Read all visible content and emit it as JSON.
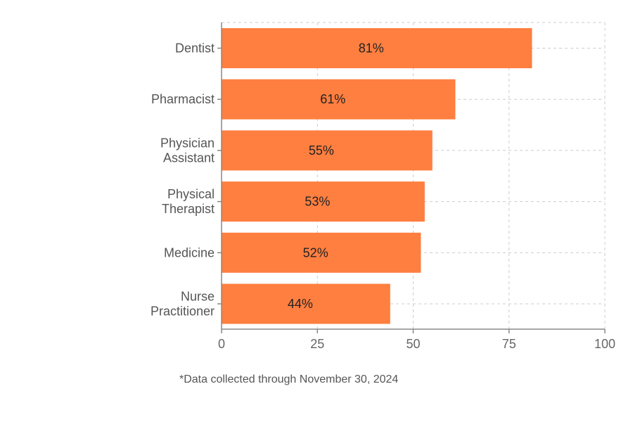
{
  "chart_data": {
    "type": "bar",
    "orientation": "horizontal",
    "categories": [
      [
        "Dentist"
      ],
      [
        "Pharmacist"
      ],
      [
        "Physician",
        "Assistant"
      ],
      [
        "Physical",
        "Therapist"
      ],
      [
        "Medicine"
      ],
      [
        "Nurse",
        "Practitioner"
      ]
    ],
    "values": [
      81,
      61,
      55,
      53,
      52,
      44
    ],
    "data_labels": [
      "81%",
      "61%",
      "55%",
      "53%",
      "52%",
      "44%"
    ],
    "title": "",
    "xlabel": "",
    "ylabel": "",
    "xlim": [
      0,
      100
    ],
    "x_ticks": [
      0,
      25,
      50,
      75,
      100
    ],
    "grid": true,
    "legend": "none",
    "bar_color": "#FF7F40"
  },
  "footnote": "*Data collected through November 30, 2024"
}
